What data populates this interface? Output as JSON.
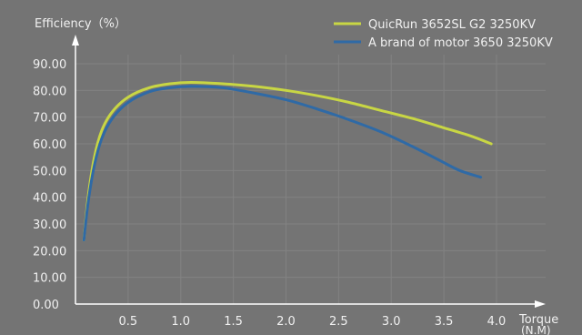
{
  "chart_data": {
    "type": "line",
    "ylabel": "Efficiency（%）",
    "xlabel_line1": "Torque",
    "xlabel_line2": "(N.M)",
    "xlim": [
      0,
      4.0
    ],
    "ylim": [
      0,
      90
    ],
    "x_ticks": [
      "0.5",
      "1.0",
      "1.5",
      "2.0",
      "2.5",
      "3.0",
      "3.5",
      "4.0"
    ],
    "y_ticks": [
      "0.00",
      "10.00",
      "20.00",
      "30.00",
      "40.00",
      "50.00",
      "60.00",
      "70.00",
      "80.00",
      "90.00"
    ],
    "grid": true,
    "legend_position": "top-right",
    "series": [
      {
        "name": "QuicRun 3652SL G2 3250KV",
        "color": "#c8d644",
        "x": [
          0.08,
          0.12,
          0.18,
          0.25,
          0.35,
          0.5,
          0.7,
          0.9,
          1.1,
          1.4,
          1.7,
          2.0,
          2.3,
          2.6,
          2.9,
          3.2,
          3.5,
          3.75,
          3.95
        ],
        "y": [
          24,
          40,
          55,
          65,
          72,
          77.5,
          81,
          82.5,
          83,
          82.5,
          81.5,
          80,
          78,
          75.5,
          72.5,
          69.5,
          66,
          63,
          60
        ]
      },
      {
        "name": "A brand of motor 3650 3250KV",
        "color": "#2f6aa6",
        "x": [
          0.08,
          0.12,
          0.18,
          0.25,
          0.35,
          0.5,
          0.7,
          0.9,
          1.1,
          1.4,
          1.7,
          2.0,
          2.3,
          2.6,
          2.9,
          3.2,
          3.45,
          3.65,
          3.85
        ],
        "y": [
          24,
          38,
          52,
          62,
          69.5,
          75.5,
          79.5,
          81,
          81.5,
          81,
          79,
          76.5,
          73,
          69,
          64.5,
          59,
          54,
          50,
          47.5
        ]
      }
    ]
  }
}
